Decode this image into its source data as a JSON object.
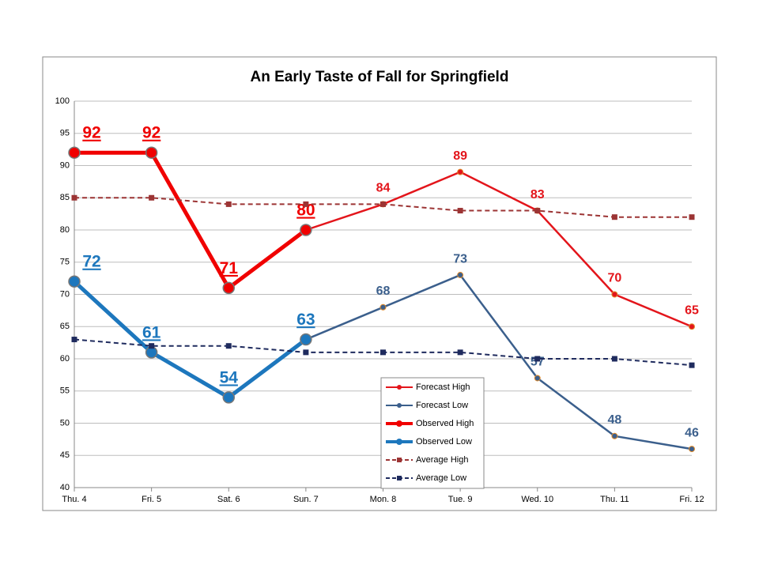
{
  "chart_data": {
    "type": "line",
    "title": "An Early Taste of Fall for Springfield",
    "categories": [
      "Thu. 4",
      "Fri. 5",
      "Sat. 6",
      "Sun. 7",
      "Mon. 8",
      "Tue. 9",
      "Wed. 10",
      "Thu. 11",
      "Fri. 12"
    ],
    "ylim": [
      40,
      100
    ],
    "yticks": [
      40,
      45,
      50,
      55,
      60,
      65,
      70,
      75,
      80,
      85,
      90,
      95,
      100
    ],
    "grid": true,
    "legend": "bottom",
    "series": [
      {
        "name": "Forecast High",
        "color": "#e3151b",
        "marker": "circle",
        "labels": true,
        "values": [
          null,
          null,
          null,
          80,
          84,
          89,
          83,
          70,
          65
        ],
        "value_labels": [
          null,
          null,
          null,
          null,
          "84",
          "89",
          "83",
          "70",
          "65"
        ]
      },
      {
        "name": "Forecast Low",
        "color": "#3b5f8c",
        "marker": "circle",
        "labels": true,
        "values": [
          null,
          null,
          null,
          63,
          68,
          73,
          57,
          48,
          46
        ],
        "value_labels": [
          null,
          null,
          null,
          null,
          "68",
          "73",
          "57",
          "48",
          "46"
        ]
      },
      {
        "name": "Observed High",
        "color": "#f00000",
        "marker": "circle",
        "bold": true,
        "labels": true,
        "values": [
          92,
          92,
          71,
          80,
          null,
          null,
          null,
          null,
          null
        ]
      },
      {
        "name": "Observed Low",
        "color": "#1d77bd",
        "marker": "circle",
        "bold": true,
        "labels": true,
        "values": [
          72,
          61,
          54,
          63,
          null,
          null,
          null,
          null,
          null
        ]
      },
      {
        "name": "Average High",
        "color": "#9c3434",
        "marker": "square",
        "dashed": true,
        "values": [
          85,
          85,
          84,
          84,
          84,
          83,
          83,
          82,
          82
        ]
      },
      {
        "name": "Average Low",
        "color": "#1f2b5e",
        "marker": "square",
        "dashed": true,
        "values": [
          63,
          62,
          62,
          61,
          61,
          61,
          60,
          60,
          59
        ]
      }
    ]
  }
}
